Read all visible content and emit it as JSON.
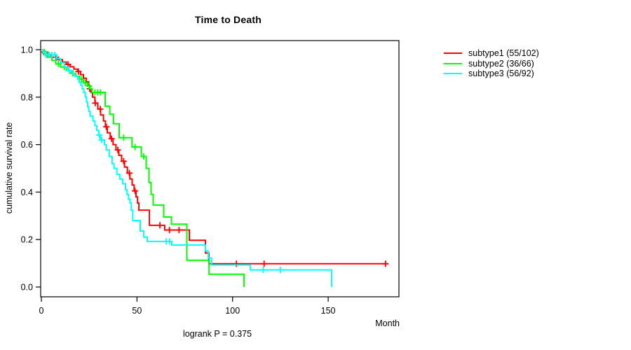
{
  "chart_data": {
    "type": "line",
    "variant": "kaplan-meier-step",
    "title": "Time to Death",
    "xlabel": "Month",
    "ylabel": "cumulative survival rate",
    "annotation": "logrank P = 0.375",
    "legend_position": "right-outside",
    "grid": false,
    "xlim": [
      0,
      187
    ],
    "ylim": [
      0,
      1
    ],
    "xticks": [
      0,
      50,
      100,
      150
    ],
    "xtick_labels": [
      "0",
      "50",
      "100",
      "150"
    ],
    "yticks": [
      0,
      0.2,
      0.4,
      0.6,
      0.8,
      1.0
    ],
    "ytick_labels": [
      "0.0",
      "0.2",
      "0.4",
      "0.6",
      "0.8",
      "1.0"
    ],
    "series": [
      {
        "id": "subtype1",
        "name": "subtype1 (55/102)",
        "color": "#ff0000",
        "end_time": 181,
        "steps": [
          [
            0,
            1
          ],
          [
            1,
            0.99
          ],
          [
            2.5,
            0.979
          ],
          [
            5,
            0.968
          ],
          [
            8,
            0.958
          ],
          [
            11,
            0.948
          ],
          [
            13,
            0.938
          ],
          [
            15,
            0.928
          ],
          [
            17,
            0.918
          ],
          [
            19,
            0.908
          ],
          [
            20.5,
            0.895
          ],
          [
            22,
            0.88
          ],
          [
            23.5,
            0.865
          ],
          [
            24.7,
            0.85
          ],
          [
            25.3,
            0.835
          ],
          [
            26,
            0.82
          ],
          [
            26.8,
            0.8
          ],
          [
            28,
            0.775
          ],
          [
            29.5,
            0.75
          ],
          [
            31,
            0.725
          ],
          [
            32.5,
            0.7
          ],
          [
            33.5,
            0.675
          ],
          [
            34.5,
            0.65
          ],
          [
            36,
            0.625
          ],
          [
            37.5,
            0.6
          ],
          [
            39,
            0.578
          ],
          [
            40.5,
            0.555
          ],
          [
            42,
            0.53
          ],
          [
            43.5,
            0.505
          ],
          [
            45,
            0.48
          ],
          [
            46.3,
            0.455
          ],
          [
            47.5,
            0.43
          ],
          [
            48.5,
            0.405
          ],
          [
            49.5,
            0.38
          ],
          [
            50.3,
            0.354
          ],
          [
            51,
            0.324
          ],
          [
            56.5,
            0.26
          ],
          [
            64.5,
            0.24
          ],
          [
            77.4,
            0.197
          ],
          [
            85.8,
            0.143
          ],
          [
            87.6,
            0.098
          ]
        ],
        "censor_times": [
          1.2,
          3.3,
          7.7,
          14,
          19.4,
          25.3,
          28.2,
          30.8,
          34,
          36.7,
          40,
          43,
          46,
          49,
          62,
          67,
          72,
          102,
          116.5,
          180
        ]
      },
      {
        "id": "subtype2",
        "name": "subtype2 (36/66)",
        "color": "#00ff00",
        "end_time": 106,
        "steps": [
          [
            0,
            1
          ],
          [
            1.5,
            0.985
          ],
          [
            3.5,
            0.97
          ],
          [
            5.5,
            0.955
          ],
          [
            7.5,
            0.94
          ],
          [
            10,
            0.927
          ],
          [
            13,
            0.912
          ],
          [
            15.5,
            0.9
          ],
          [
            18,
            0.888
          ],
          [
            20,
            0.875
          ],
          [
            22,
            0.86
          ],
          [
            24,
            0.847
          ],
          [
            25.5,
            0.835
          ],
          [
            26.5,
            0.82
          ],
          [
            33.4,
            0.762
          ],
          [
            35.8,
            0.728
          ],
          [
            37.7,
            0.688
          ],
          [
            40.7,
            0.629
          ],
          [
            47.4,
            0.59
          ],
          [
            52.3,
            0.55
          ],
          [
            54.8,
            0.5
          ],
          [
            56.3,
            0.44
          ],
          [
            57.4,
            0.39
          ],
          [
            58.5,
            0.345
          ],
          [
            64,
            0.295
          ],
          [
            68,
            0.265
          ],
          [
            76.1,
            0.113
          ],
          [
            87.7,
            0.054
          ],
          [
            106,
            0
          ]
        ],
        "censor_times": [
          2,
          9,
          12,
          16.5,
          21,
          23,
          25,
          28,
          29.5,
          31,
          43,
          49,
          53.5
        ]
      },
      {
        "id": "subtype3",
        "name": "subtype3 (56/92)",
        "color": "#00ffff",
        "end_time": 151.8,
        "steps": [
          [
            0,
            1
          ],
          [
            1,
            0.989
          ],
          [
            2,
            0.978
          ],
          [
            8,
            0.962
          ],
          [
            10,
            0.945
          ],
          [
            12,
            0.927
          ],
          [
            14,
            0.912
          ],
          [
            16,
            0.9
          ],
          [
            17.5,
            0.888
          ],
          [
            19,
            0.875
          ],
          [
            19.8,
            0.862
          ],
          [
            20.6,
            0.85
          ],
          [
            21.4,
            0.835
          ],
          [
            22.2,
            0.82
          ],
          [
            23,
            0.8
          ],
          [
            23.6,
            0.78
          ],
          [
            24.2,
            0.76
          ],
          [
            24.8,
            0.74
          ],
          [
            25.5,
            0.72
          ],
          [
            27,
            0.7
          ],
          [
            28,
            0.68
          ],
          [
            29,
            0.66
          ],
          [
            30,
            0.64
          ],
          [
            31,
            0.62
          ],
          [
            33,
            0.6
          ],
          [
            34,
            0.578
          ],
          [
            35.5,
            0.55
          ],
          [
            37,
            0.52
          ],
          [
            38,
            0.5
          ],
          [
            39.5,
            0.475
          ],
          [
            41,
            0.455
          ],
          [
            42.5,
            0.435
          ],
          [
            44,
            0.41
          ],
          [
            44.8,
            0.39
          ],
          [
            45.6,
            0.37
          ],
          [
            46.4,
            0.354
          ],
          [
            47,
            0.324
          ],
          [
            47.8,
            0.28
          ],
          [
            51.7,
            0.236
          ],
          [
            53.5,
            0.21
          ],
          [
            55.4,
            0.192
          ],
          [
            68.2,
            0.177
          ],
          [
            85.8,
            0.152
          ],
          [
            87.3,
            0.122
          ],
          [
            89,
            0.093
          ],
          [
            109.3,
            0.072
          ],
          [
            151.8,
            0
          ]
        ],
        "censor_times": [
          2.5,
          4,
          5.5,
          7,
          14.5,
          30.3,
          31.5,
          65.3,
          67.1,
          116,
          125
        ]
      }
    ]
  }
}
